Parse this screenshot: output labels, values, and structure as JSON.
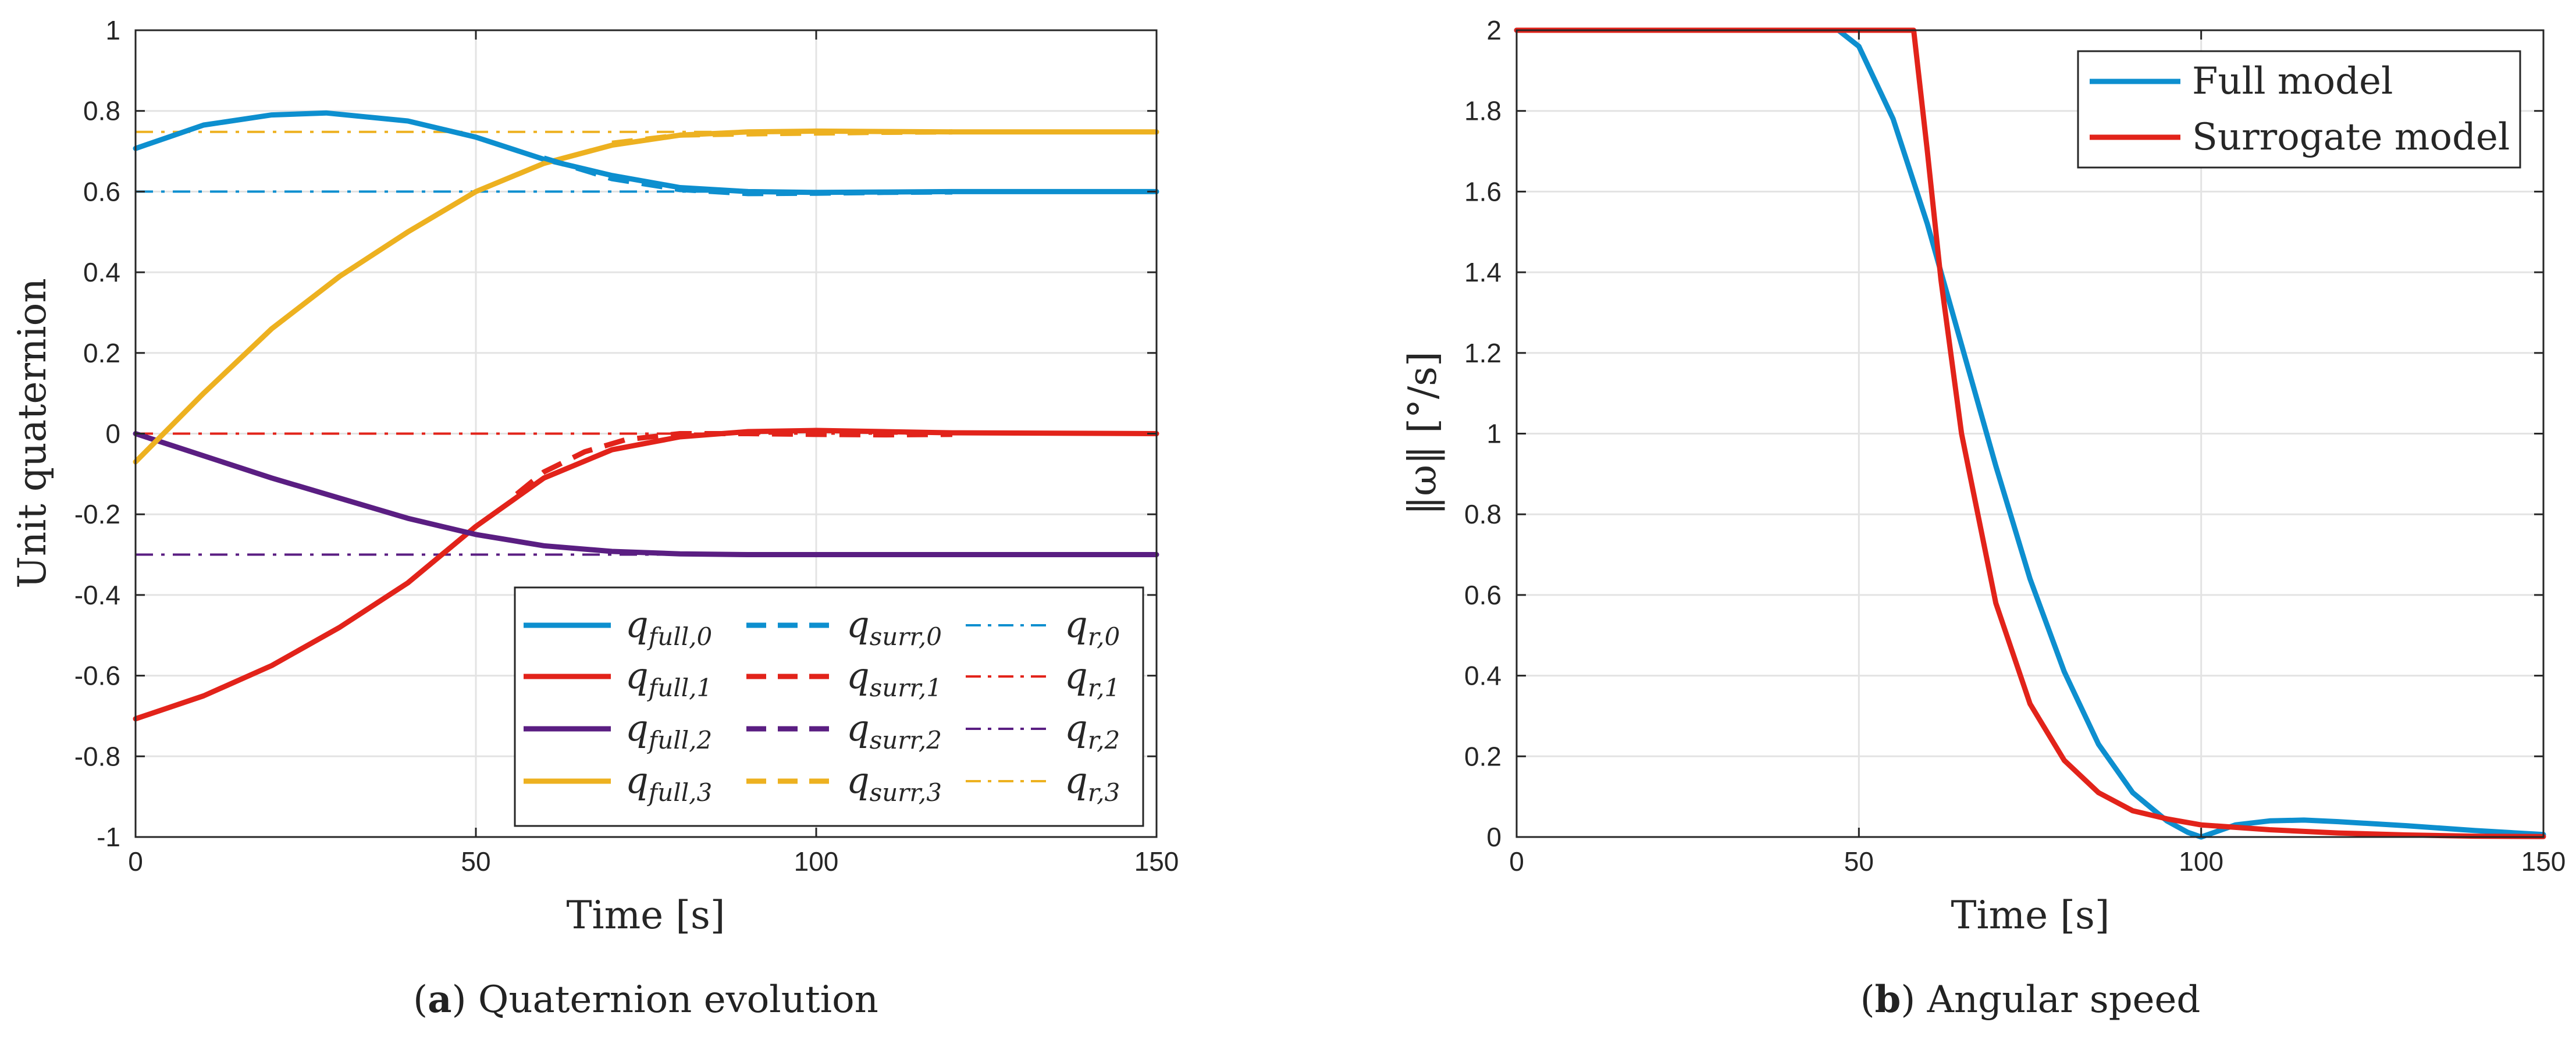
{
  "chart_data": [
    {
      "type": "line",
      "title": "",
      "caption_letter": "a",
      "caption_text": "Quaternion evolution",
      "xlabel": "Time [s]",
      "ylabel": "Unit quaternion",
      "xlim": [
        0,
        150
      ],
      "ylim": [
        -1,
        1
      ],
      "xticks": [
        "0",
        "50",
        "100",
        "150"
      ],
      "yticks": [
        "-1",
        "-0.8",
        "-0.6",
        "-0.4",
        "-0.2",
        "0",
        "0.2",
        "0.4",
        "0.6",
        "0.8",
        "1"
      ],
      "grid": true,
      "legend_position": "bottom-right",
      "series": [
        {
          "name": "q_full,0",
          "label_base": "q",
          "label_sub": "full,0",
          "style": "solid",
          "color": "#0d8fcf",
          "x": [
            0,
            10,
            20,
            28,
            40,
            50,
            60,
            70,
            80,
            90,
            100,
            110,
            120,
            150
          ],
          "y": [
            0.707,
            0.765,
            0.79,
            0.795,
            0.775,
            0.735,
            0.68,
            0.64,
            0.61,
            0.6,
            0.598,
            0.599,
            0.6,
            0.6
          ]
        },
        {
          "name": "q_full,1",
          "label_base": "q",
          "label_sub": "full,1",
          "style": "solid",
          "color": "#e2231a",
          "x": [
            0,
            10,
            20,
            30,
            40,
            50,
            60,
            70,
            80,
            90,
            100,
            110,
            120,
            150
          ],
          "y": [
            -0.707,
            -0.65,
            -0.575,
            -0.48,
            -0.37,
            -0.23,
            -0.11,
            -0.04,
            -0.008,
            0.005,
            0.008,
            0.005,
            0.002,
            0.0
          ]
        },
        {
          "name": "q_full,2",
          "label_base": "q",
          "label_sub": "full,2",
          "style": "solid",
          "color": "#5a1e82",
          "x": [
            0,
            10,
            20,
            30,
            40,
            50,
            60,
            70,
            80,
            90,
            100,
            150
          ],
          "y": [
            0.0,
            -0.055,
            -0.11,
            -0.16,
            -0.21,
            -0.25,
            -0.278,
            -0.292,
            -0.298,
            -0.3,
            -0.3,
            -0.3
          ]
        },
        {
          "name": "q_full,3",
          "label_base": "q",
          "label_sub": "full,3",
          "style": "solid",
          "color": "#edb120",
          "x": [
            0,
            10,
            20,
            30,
            40,
            50,
            60,
            70,
            80,
            90,
            100,
            110,
            120,
            150
          ],
          "y": [
            -0.07,
            0.1,
            0.26,
            0.39,
            0.5,
            0.6,
            0.67,
            0.715,
            0.74,
            0.748,
            0.75,
            0.749,
            0.748,
            0.748
          ]
        },
        {
          "name": "q_surr,0",
          "label_base": "q",
          "label_sub": "surr,0",
          "style": "dashed",
          "color": "#0d8fcf",
          "x": [
            60,
            70,
            80,
            90,
            100,
            110,
            120
          ],
          "y": [
            0.683,
            0.632,
            0.605,
            0.595,
            0.596,
            0.598,
            0.599
          ]
        },
        {
          "name": "q_surr,1",
          "label_base": "q",
          "label_sub": "surr,1",
          "style": "dashed",
          "color": "#e2231a",
          "x": [
            56,
            60,
            66,
            72,
            80,
            90,
            100,
            110,
            120
          ],
          "y": [
            -0.15,
            -0.095,
            -0.045,
            -0.015,
            0.0,
            0.0,
            -0.002,
            -0.003,
            -0.002
          ]
        },
        {
          "name": "q_surr,2",
          "label_base": "q",
          "label_sub": "surr,2",
          "style": "dashed",
          "color": "#5a1e82",
          "x": [],
          "y": []
        },
        {
          "name": "q_surr,3",
          "label_base": "q",
          "label_sub": "surr,3",
          "style": "dashed",
          "color": "#edb120",
          "x": [
            70,
            80,
            90,
            100,
            110,
            120
          ],
          "y": [
            0.72,
            0.74,
            0.743,
            0.745,
            0.747,
            0.748
          ]
        },
        {
          "name": "q_r,0",
          "label_base": "q",
          "label_sub": "r,0",
          "style": "dashdot",
          "color": "#0d8fcf",
          "x": [
            0,
            150
          ],
          "y": [
            0.6,
            0.6
          ]
        },
        {
          "name": "q_r,1",
          "label_base": "q",
          "label_sub": "r,1",
          "style": "dashdot",
          "color": "#e2231a",
          "x": [
            0,
            150
          ],
          "y": [
            0.0,
            0.0
          ]
        },
        {
          "name": "q_r,2",
          "label_base": "q",
          "label_sub": "r,2",
          "style": "dashdot",
          "color": "#5a1e82",
          "x": [
            0,
            150
          ],
          "y": [
            -0.3,
            -0.3
          ]
        },
        {
          "name": "q_r,3",
          "label_base": "q",
          "label_sub": "r,3",
          "style": "dashdot",
          "color": "#edb120",
          "x": [
            0,
            150
          ],
          "y": [
            0.748,
            0.748
          ]
        }
      ]
    },
    {
      "type": "line",
      "title": "",
      "caption_letter": "b",
      "caption_text": "Angular speed",
      "xlabel": "Time [s]",
      "ylabel": "‖ω‖ [°/s]",
      "xlim": [
        0,
        150
      ],
      "ylim": [
        0,
        2
      ],
      "xticks": [
        "0",
        "50",
        "100",
        "150"
      ],
      "yticks": [
        "0",
        "0.2",
        "0.4",
        "0.6",
        "0.8",
        "1",
        "1.2",
        "1.4",
        "1.6",
        "1.8",
        "2"
      ],
      "grid": true,
      "legend_position": "top-right",
      "series": [
        {
          "name": "Full model",
          "style": "solid",
          "color": "#0d8fcf",
          "x": [
            0,
            47,
            50,
            55,
            60,
            65,
            70,
            75,
            80,
            85,
            90,
            95,
            98,
            100,
            102,
            105,
            110,
            115,
            120,
            130,
            140,
            150
          ],
          "y": [
            2.0,
            2.0,
            1.96,
            1.78,
            1.52,
            1.22,
            0.92,
            0.64,
            0.41,
            0.23,
            0.11,
            0.04,
            0.012,
            0.0,
            0.012,
            0.03,
            0.04,
            0.042,
            0.038,
            0.028,
            0.016,
            0.006
          ]
        },
        {
          "name": "Surrogate model",
          "style": "solid",
          "color": "#e2231a",
          "x": [
            0,
            58,
            60,
            62,
            65,
            70,
            75,
            80,
            85,
            90,
            95,
            100,
            110,
            120,
            130,
            140,
            150
          ],
          "y": [
            2.0,
            2.0,
            1.7,
            1.38,
            1.0,
            0.58,
            0.33,
            0.19,
            0.11,
            0.065,
            0.045,
            0.03,
            0.018,
            0.01,
            0.005,
            0.002,
            0.001
          ]
        }
      ]
    }
  ]
}
